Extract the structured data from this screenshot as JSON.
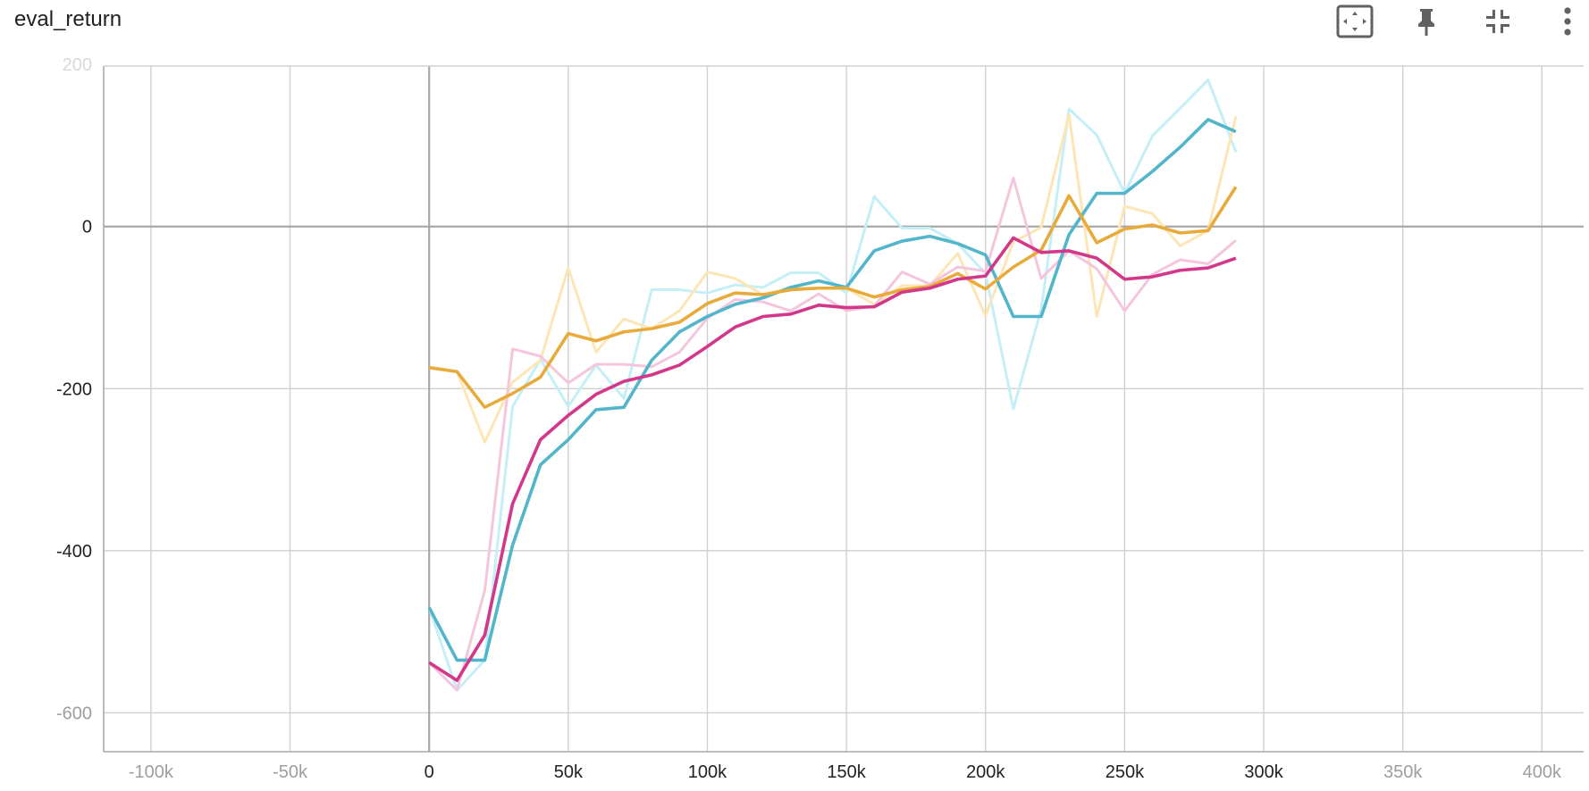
{
  "card": {
    "title": "eval_return",
    "toolbar": [
      {
        "id": "fit-domain",
        "icon": "fit-to-data-icon"
      },
      {
        "id": "pin",
        "icon": "pin-icon"
      },
      {
        "id": "collapse",
        "icon": "collapse-icon"
      },
      {
        "id": "more",
        "icon": "more-vert-icon"
      }
    ]
  },
  "chart_data": {
    "type": "line",
    "title": "eval_return",
    "xlabel": "",
    "ylabel": "",
    "xlim": [
      -117000,
      415000
    ],
    "ylim": [
      -648,
      198
    ],
    "x_ticks": [
      -100000,
      -50000,
      0,
      50000,
      100000,
      150000,
      200000,
      250000,
      300000,
      350000,
      400000
    ],
    "x_tick_labels": [
      "-100k",
      "-50k",
      "0",
      "50k",
      "100k",
      "150k",
      "200k",
      "250k",
      "300k",
      "350k",
      "400k"
    ],
    "y_ticks": [
      -600,
      -400,
      -200,
      0,
      200
    ],
    "y_tick_labels": [
      "-600",
      "-400",
      "-200",
      "0",
      "200"
    ],
    "grid": true,
    "legend": "none",
    "colors": {
      "cyan": "#52b5c9",
      "cyan_raw": "#c4eff7",
      "orange": "#e8ab3b",
      "orange_raw": "#fde6b5",
      "magenta": "#d2378a",
      "magenta_raw": "#f5c5de",
      "grid": "#d0d0d0",
      "axis": "#a8a8a8",
      "tick_dark": "#212121",
      "tick_faded": "#9e9e9e"
    },
    "x": [
      0,
      10000,
      20000,
      30000,
      40000,
      50000,
      60000,
      70000,
      80000,
      90000,
      100000,
      110000,
      120000,
      130000,
      140000,
      150000,
      160000,
      170000,
      180000,
      190000,
      200000,
      210000,
      220000,
      230000,
      240000,
      250000,
      260000,
      270000,
      280000,
      290000
    ],
    "series": [
      {
        "color_key": "cyan",
        "raw_color_key": "cyan_raw",
        "smoothed": [
          -470,
          -535,
          -535,
          -393,
          -294,
          -263,
          -226,
          -223,
          -165,
          -130,
          -111,
          -96,
          -88,
          -75,
          -67,
          -75,
          -30,
          -18,
          -12,
          -21,
          -35,
          -111,
          -111,
          -10,
          41,
          41,
          68,
          98,
          132,
          117
        ],
        "raw": [
          -470,
          -572,
          -535,
          -222,
          -164,
          -222,
          -171,
          -212,
          -78,
          -78,
          -82,
          -72,
          -75,
          -57,
          -57,
          -82,
          37,
          -2,
          -2,
          -21,
          -58,
          -225,
          -102,
          145,
          113,
          41,
          112,
          146,
          181,
          92
        ]
      },
      {
        "color_key": "orange",
        "raw_color_key": "orange_raw",
        "smoothed": [
          -174,
          -179,
          -223,
          -206,
          -186,
          -132,
          -141,
          -130,
          -126,
          -118,
          -95,
          -82,
          -84,
          -78,
          -76,
          -76,
          -87,
          -78,
          -74,
          -58,
          -77,
          -50,
          -29,
          38,
          -20,
          -3,
          2,
          -8,
          -5,
          49
        ],
        "raw": [
          -174,
          -179,
          -266,
          -192,
          -165,
          -51,
          -155,
          -114,
          -126,
          -104,
          -56,
          -64,
          -84,
          -76,
          -76,
          -76,
          -96,
          -73,
          -73,
          -33,
          -110,
          -19,
          -1,
          138,
          -111,
          25,
          16,
          -24,
          -5,
          136
        ]
      },
      {
        "color_key": "magenta",
        "raw_color_key": "magenta_raw",
        "smoothed": [
          -538,
          -560,
          -504,
          -342,
          -263,
          -233,
          -207,
          -191,
          -183,
          -171,
          -148,
          -124,
          -111,
          -108,
          -97,
          -100,
          -99,
          -81,
          -76,
          -65,
          -61,
          -14,
          -32,
          -30,
          -39,
          -65,
          -62,
          -54,
          -51,
          -39
        ],
        "raw": [
          -538,
          -572,
          -449,
          -151,
          -160,
          -193,
          -170,
          -170,
          -173,
          -155,
          -113,
          -90,
          -93,
          -104,
          -83,
          -104,
          -98,
          -56,
          -71,
          -50,
          -55,
          60,
          -64,
          -30,
          -52,
          -104,
          -59,
          -41,
          -46,
          -17
        ]
      }
    ]
  }
}
